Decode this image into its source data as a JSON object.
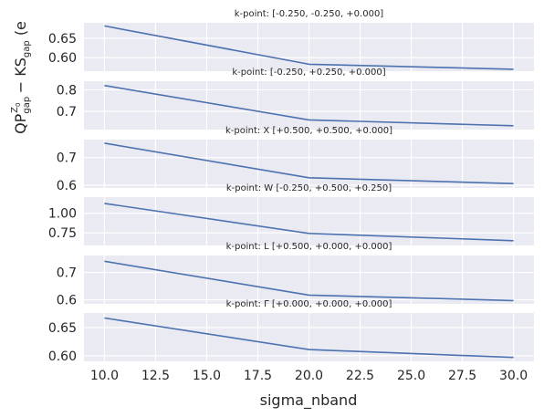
{
  "chart_data": {
    "type": "line",
    "xlabel": "sigma_nband",
    "ylabel_parts": [
      "QP",
      "gap",
      "Z",
      "0",
      "gap",
      " − KS",
      "gap",
      " (e"
    ],
    "x_ticks": [
      "10.0",
      "12.5",
      "15.0",
      "17.5",
      "20.0",
      "22.5",
      "25.0",
      "27.5",
      "30.0"
    ],
    "x_tick_values": [
      10.0,
      12.5,
      15.0,
      17.5,
      20.0,
      22.5,
      25.0,
      27.5,
      30.0
    ],
    "xlim": [
      9.0,
      31.0
    ],
    "grid": true,
    "series_color": "#4c72b0",
    "panels": [
      {
        "title": "k-point: [-0.250, -0.250, +0.000]",
        "x": [
          10,
          20,
          30
        ],
        "y": [
          0.682,
          0.583,
          0.57
        ],
        "ylim": [
          0.565,
          0.69
        ],
        "y_ticks": [
          0.6,
          0.65
        ],
        "y_tick_labels": [
          "0.60",
          "0.65"
        ]
      },
      {
        "title": "k-point: [-0.250, +0.250, +0.000]",
        "x": [
          10,
          20,
          30
        ],
        "y": [
          0.82,
          0.66,
          0.633
        ],
        "ylim": [
          0.615,
          0.84
        ],
        "y_ticks": [
          0.7,
          0.8
        ],
        "y_tick_labels": [
          "0.7",
          "0.8"
        ]
      },
      {
        "title": "k-point: X [+0.500, +0.500, +0.000]",
        "x": [
          10,
          20,
          30
        ],
        "y": [
          0.752,
          0.627,
          0.606
        ],
        "ylim": [
          0.59,
          0.765
        ],
        "y_ticks": [
          0.6,
          0.7
        ],
        "y_tick_labels": [
          "0.6",
          "0.7"
        ]
      },
      {
        "title": "k-point: W [-0.250, +0.500, +0.250]",
        "x": [
          10,
          20,
          30
        ],
        "y": [
          1.125,
          0.743,
          0.65
        ],
        "ylim": [
          0.59,
          1.205
        ],
        "y_ticks": [
          0.75,
          1.0
        ],
        "y_tick_labels": [
          "0.75",
          "1.00"
        ]
      },
      {
        "title": "k-point: L [+0.500, +0.000, +0.000]",
        "x": [
          10,
          20,
          30
        ],
        "y": [
          0.741,
          0.617,
          0.597
        ],
        "ylim": [
          0.585,
          0.762
        ],
        "y_ticks": [
          0.6,
          0.7
        ],
        "y_tick_labels": [
          "0.6",
          "0.7"
        ]
      },
      {
        "title": "k-point: Γ [+0.000, +0.000, +0.000]",
        "x": [
          10,
          20,
          30
        ],
        "y": [
          0.667,
          0.611,
          0.597
        ],
        "ylim": [
          0.59,
          0.676
        ],
        "y_ticks": [
          0.6,
          0.65
        ],
        "y_tick_labels": [
          "0.60",
          "0.65"
        ]
      }
    ]
  }
}
